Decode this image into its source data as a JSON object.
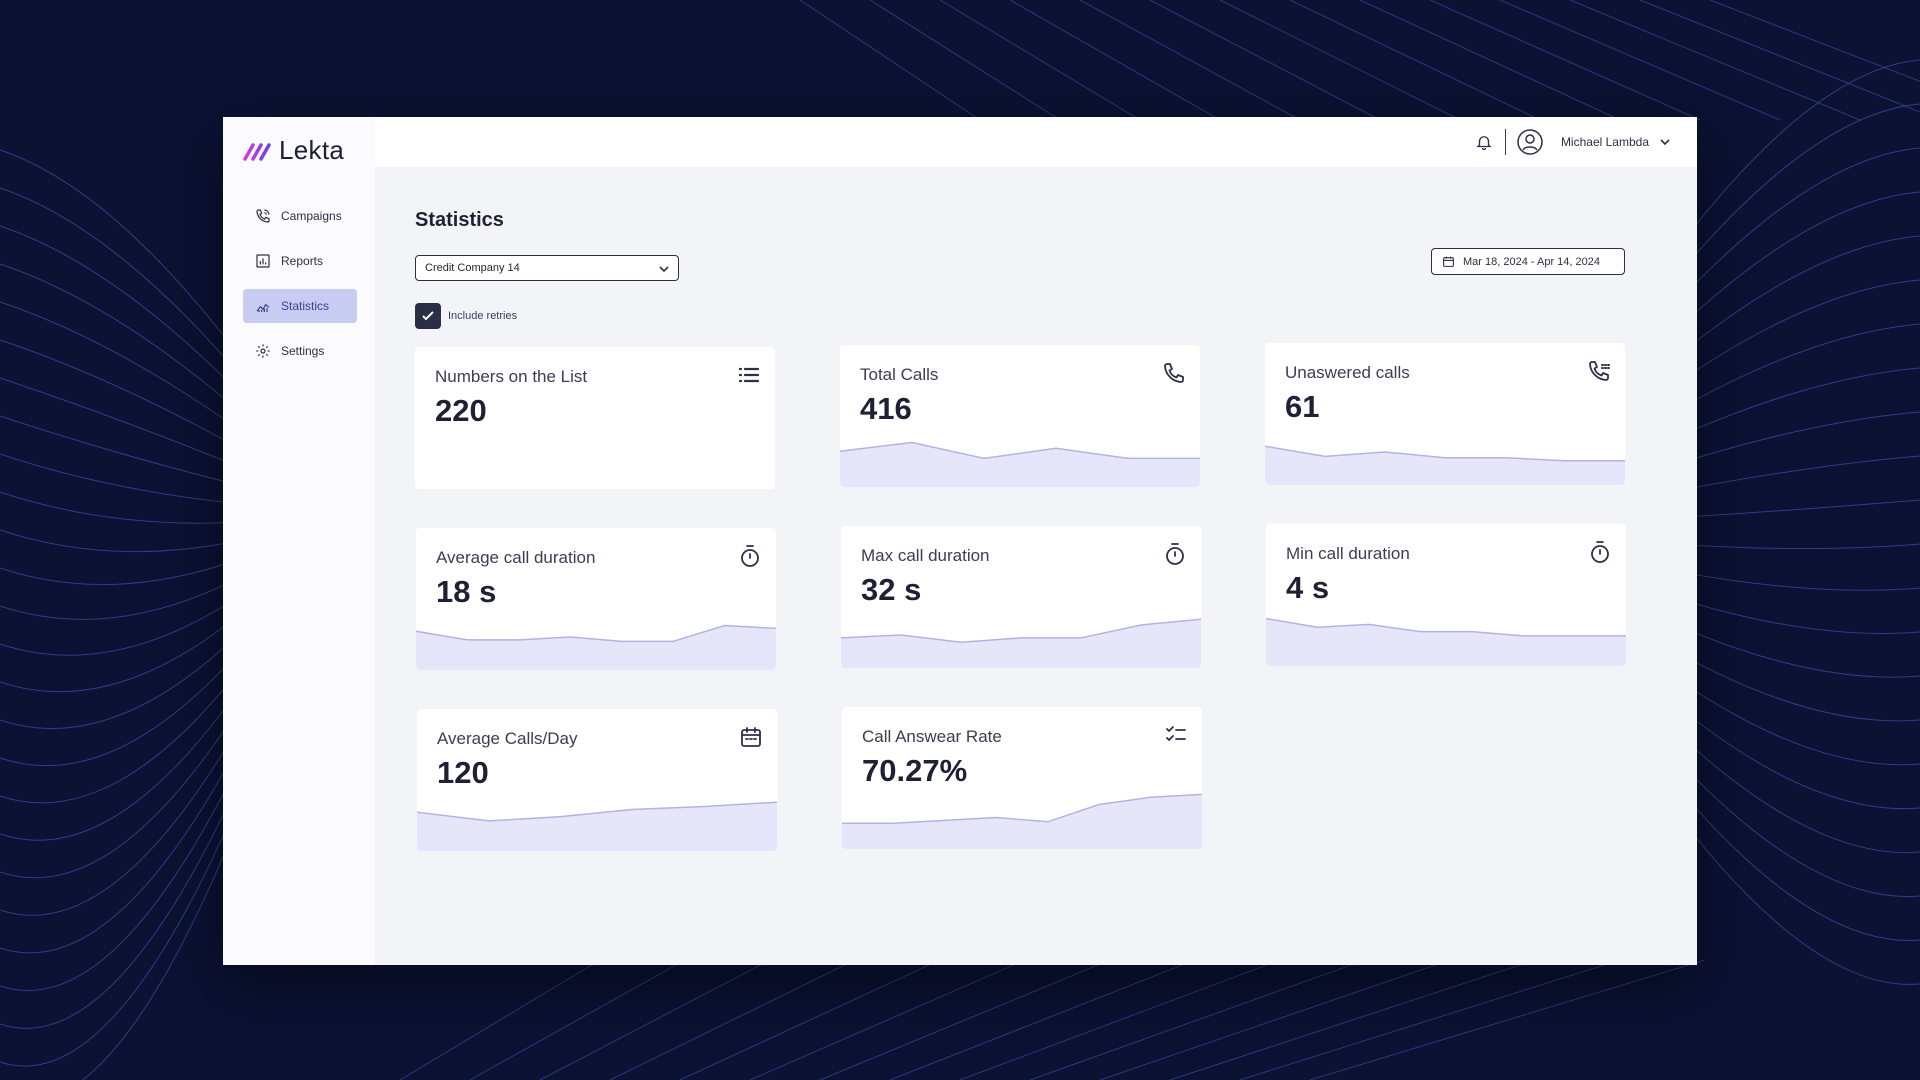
{
  "app": {
    "brand": "Lekta"
  },
  "sidebar": {
    "items": [
      {
        "label": "Campaigns",
        "icon": "phone-icon",
        "active": false
      },
      {
        "label": "Reports",
        "icon": "report-icon",
        "active": false
      },
      {
        "label": "Statistics",
        "icon": "chart-icon",
        "active": true
      },
      {
        "label": "Settings",
        "icon": "gear-icon",
        "active": false
      }
    ]
  },
  "topbar": {
    "user_name": "Michael Lambda"
  },
  "main": {
    "title": "Statistics",
    "campaign_select": {
      "value": "Credit Company 14"
    },
    "date_range": "Mar 18, 2024 - Apr 14, 2024",
    "include_retries": {
      "label": "Include retries",
      "checked": true
    }
  },
  "cards": [
    {
      "title": "Numbers on the List",
      "value": "220",
      "icon": "list-icon",
      "trend": []
    },
    {
      "title": "Total Calls",
      "value": "416",
      "icon": "phone-icon",
      "trend": [
        0.55,
        0.85,
        0.3,
        0.65,
        0.3,
        0.3
      ]
    },
    {
      "title": "Unaswered calls",
      "value": "61",
      "icon": "phone-missed-icon",
      "trend": [
        0.65,
        0.3,
        0.45,
        0.25,
        0.25,
        0.15,
        0.15
      ]
    },
    {
      "title": "Average call duration",
      "value": "18 s",
      "icon": "stopwatch-icon",
      "trend": [
        0.65,
        0.35,
        0.35,
        0.45,
        0.3,
        0.3,
        0.85,
        0.75
      ]
    },
    {
      "title": "Max call duration",
      "value": "32 s",
      "icon": "stopwatch-icon",
      "trend": [
        0.35,
        0.45,
        0.2,
        0.35,
        0.35,
        0.8,
        1.0
      ]
    },
    {
      "title": "Min call duration",
      "value": "4 s",
      "icon": "stopwatch-icon",
      "trend": [
        0.95,
        0.65,
        0.75,
        0.5,
        0.5,
        0.35,
        0.35,
        0.35
      ]
    },
    {
      "title": "Average Calls/Day",
      "value": "120",
      "icon": "calendar-icon",
      "trend": [
        0.65,
        0.35,
        0.5,
        0.75,
        0.85,
        1.0
      ]
    },
    {
      "title": "Call Answear Rate",
      "value": "70.27%",
      "icon": "checklist-icon",
      "trend": [
        0.2,
        0.2,
        0.3,
        0.4,
        0.25,
        0.85,
        1.1,
        1.2
      ]
    }
  ],
  "colors": {
    "accent": "#c9ccf2",
    "spark_fill": "#e6e6fb",
    "spark_line": "#b3b3e3",
    "background": "#0b1233"
  }
}
